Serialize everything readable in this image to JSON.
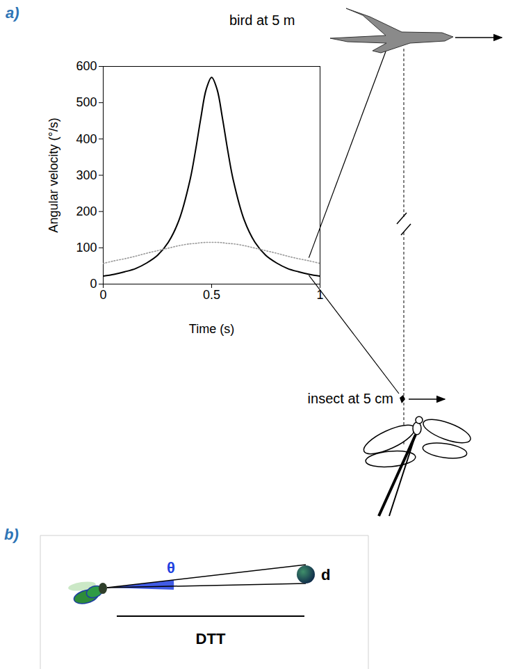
{
  "chart_data": {
    "type": "line",
    "panel_label": "a)",
    "x_label": "Time (s)",
    "y_label": "Angular velocity (°/s)",
    "x": [
      0,
      0.05,
      0.1,
      0.15,
      0.2,
      0.25,
      0.3,
      0.35,
      0.4,
      0.425,
      0.45,
      0.475,
      0.5,
      0.525,
      0.55,
      0.575,
      0.6,
      0.65,
      0.7,
      0.75,
      0.8,
      0.85,
      0.9,
      0.95,
      1
    ],
    "xlim": [
      0,
      1
    ],
    "xticks": [
      0,
      0.5,
      1
    ],
    "ylim": [
      0,
      600
    ],
    "yticks": [
      0,
      100,
      200,
      300,
      400,
      500,
      600
    ],
    "series": [
      {
        "name": "insect at 5 cm",
        "color": "#000000",
        "line_style": "solid",
        "values": [
          22,
          27,
          34,
          43,
          58,
          79,
          115,
          177,
          286,
          366,
          457,
          537,
          570,
          537,
          457,
          366,
          286,
          177,
          115,
          79,
          58,
          43,
          34,
          27,
          22
        ]
      },
      {
        "name": "bird at 5 m",
        "color": "#999999",
        "line_style": "dotted",
        "values": [
          57,
          64,
          70,
          77,
          85,
          92,
          99,
          106,
          111,
          112,
          114,
          115,
          115,
          115,
          114,
          112,
          111,
          106,
          99,
          92,
          85,
          77,
          70,
          64,
          57
        ]
      }
    ]
  },
  "diagram": {
    "panel_label": "b)",
    "angle_label": "θ",
    "size_label": "d",
    "distance_label": "DTT"
  }
}
